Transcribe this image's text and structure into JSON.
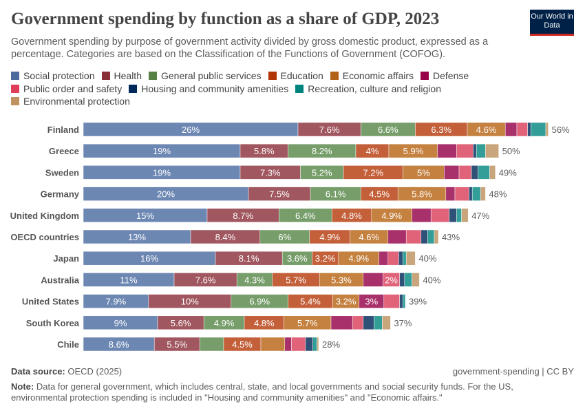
{
  "title": "Government spending by function as a share of GDP, 2023",
  "subtitle": "Government spending by purpose of government activity divided by gross domestic product, expressed as a percentage. Categories are based on the Classification of the Functions of Government (COFOG).",
  "logo": "Our World in Data",
  "footer": {
    "source_label": "Data source:",
    "source": "OECD (2025)",
    "license": "government-spending | CC BY",
    "note_label": "Note:",
    "note": "Data for general government, which includes central, state, and local governments and social security funds. For the US, environmental protection spending is included in \"Housing and community amenities\" and \"Economic affairs.\""
  },
  "chart_data": {
    "type": "bar",
    "orientation": "horizontal",
    "stacked": true,
    "unit": "%",
    "legend_position": "top",
    "grid": false,
    "series": [
      {
        "name": "Social protection",
        "color": "#6d87b3",
        "legend_color": "#4c6a9c"
      },
      {
        "name": "Health",
        "color": "#a0575f",
        "legend_color": "#883039"
      },
      {
        "name": "General public services",
        "color": "#779e6a",
        "legend_color": "#578145"
      },
      {
        "name": "Education",
        "color": "#c3603a",
        "legend_color": "#b13507"
      },
      {
        "name": "Economic affairs",
        "color": "#c4813f",
        "legend_color": "#b16214"
      },
      {
        "name": "Defense",
        "color": "#a8306b",
        "legend_color": "#970046"
      },
      {
        "name": "Public order and safety",
        "color": "#e0637a",
        "legend_color": "#e03d5c"
      },
      {
        "name": "Housing and community amenities",
        "color": "#2f5177",
        "legend_color": "#00295b"
      },
      {
        "name": "Recreation, culture and religion",
        "color": "#339e98",
        "legend_color": "#00847e"
      },
      {
        "name": "Environmental protection",
        "color": "#c9a57c",
        "legend_color": "#c09161"
      }
    ],
    "rows": [
      {
        "category": "Finland",
        "total": "56%",
        "values": [
          26,
          7.6,
          6.6,
          6.3,
          4.6,
          1.4,
          1.3,
          0.4,
          1.8,
          0.3
        ],
        "labels": [
          "26%",
          "7.6%",
          "6.6%",
          "6.3%",
          "4.6%",
          "",
          "",
          "",
          "",
          ""
        ]
      },
      {
        "category": "Greece",
        "total": "50%",
        "values": [
          19,
          5.8,
          8.2,
          4,
          5.9,
          2.3,
          2.0,
          0.4,
          1.1,
          1.6
        ],
        "labels": [
          "19%",
          "5.8%",
          "8.2%",
          "4%",
          "5.9%",
          "",
          "",
          "",
          "",
          ""
        ]
      },
      {
        "category": "Sweden",
        "total": "49%",
        "values": [
          19,
          7.3,
          5.2,
          7.2,
          5,
          1.8,
          1.5,
          0.8,
          1.4,
          0.7
        ],
        "labels": [
          "19%",
          "7.3%",
          "5.2%",
          "7.2%",
          "5%",
          "",
          "",
          "",
          "",
          ""
        ]
      },
      {
        "category": "Germany",
        "total": "48%",
        "values": [
          20,
          7.5,
          6.1,
          4.5,
          5.8,
          1.1,
          1.7,
          0.4,
          1.0,
          0.6
        ],
        "labels": [
          "20%",
          "7.5%",
          "6.1%",
          "4.5%",
          "5.8%",
          "",
          "",
          "",
          "",
          ""
        ]
      },
      {
        "category": "United Kingdom",
        "total": "47%",
        "values": [
          15,
          8.7,
          6.4,
          4.8,
          4.9,
          2.3,
          2.2,
          0.9,
          0.6,
          0.8
        ],
        "labels": [
          "15%",
          "8.7%",
          "6.4%",
          "4.8%",
          "4.9%",
          "",
          "",
          "",
          "",
          ""
        ]
      },
      {
        "category": "OECD countries",
        "total": "43%",
        "values": [
          13,
          8.4,
          6,
          4.9,
          4.6,
          2.2,
          1.8,
          0.8,
          0.8,
          0.5
        ],
        "labels": [
          "13%",
          "8.4%",
          "6%",
          "4.9%",
          "4.6%",
          "",
          "",
          "",
          "",
          ""
        ]
      },
      {
        "category": "Japan",
        "total": "40%",
        "values": [
          16,
          8.1,
          3.6,
          3.2,
          4.9,
          1.1,
          1.3,
          0.5,
          0.4,
          1.1
        ],
        "labels": [
          "16%",
          "8.1%",
          "3.6%",
          "3.2%",
          "4.9%",
          "",
          "",
          "",
          "",
          ""
        ]
      },
      {
        "category": "Australia",
        "total": "40%",
        "values": [
          11,
          7.6,
          4.3,
          5.7,
          5.3,
          2.4,
          2,
          0.6,
          0.9,
          0.9
        ],
        "labels": [
          "11%",
          "7.6%",
          "4.3%",
          "5.7%",
          "5.3%",
          "",
          "2%",
          "",
          "",
          ""
        ]
      },
      {
        "category": "United States",
        "total": "39%",
        "values": [
          7.9,
          10,
          6.9,
          5.4,
          3.2,
          3,
          1.9,
          0.4,
          0.3,
          0
        ],
        "labels": [
          "7.9%",
          "10%",
          "6.9%",
          "5.4%",
          "3.2%",
          "3%",
          "",
          "",
          "",
          ""
        ]
      },
      {
        "category": "South Korea",
        "total": "37%",
        "values": [
          9,
          5.6,
          4.9,
          4.8,
          5.7,
          2.6,
          1.3,
          1.3,
          1.0,
          1.0
        ],
        "labels": [
          "9%",
          "5.6%",
          "4.9%",
          "4.8%",
          "5.7%",
          "",
          "",
          "",
          "",
          ""
        ]
      },
      {
        "category": "Chile",
        "total": "28%",
        "values": [
          8.6,
          5.5,
          2.9,
          4.5,
          2.9,
          0.8,
          1.7,
          0.9,
          0.5,
          0.2
        ],
        "labels": [
          "8.6%",
          "5.5%",
          "",
          "4.5%",
          "",
          "",
          "",
          "",
          "",
          ""
        ]
      }
    ]
  }
}
